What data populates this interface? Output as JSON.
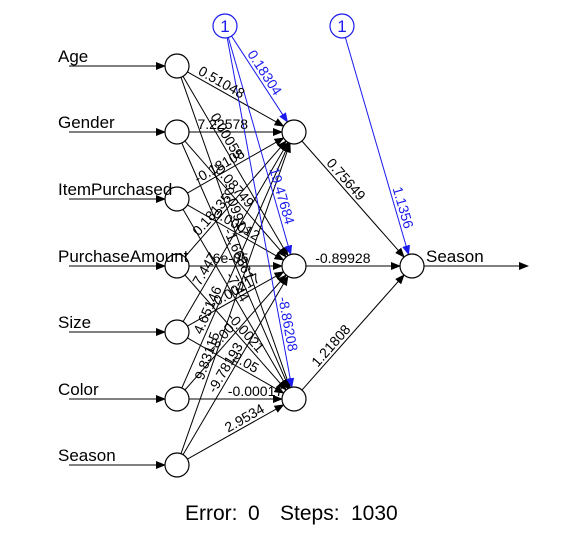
{
  "inputs": [
    "Age",
    "Gender",
    "ItemPurchased",
    "PurchaseAmount",
    "Size",
    "Color",
    "Season"
  ],
  "output": "Season",
  "bias_label": "1",
  "weights": {
    "input_hidden": [
      [
        "0.51048",
        "0.00055",
        "-0.09917"
      ],
      [
        "7.22578",
        "-0.08749",
        "-1.66661"
      ],
      [
        "-0.18108",
        "0.00012",
        "-7.44"
      ],
      [
        "0.18135",
        "6e-05",
        "-0.0021"
      ],
      [
        "7.447",
        "-0.00217",
        "-2.05"
      ],
      [
        "4.65146",
        "-3.00",
        "-0.00017"
      ],
      [
        "9.83115",
        "-9.78193",
        "2.9534"
      ]
    ],
    "bias_hidden": [
      "0.18304",
      "19.47684",
      "-8.86208"
    ],
    "hidden_output": [
      "0.75649",
      "-0.89928",
      "1.21808"
    ],
    "bias_output": "1.1356"
  },
  "footer": {
    "error_label": "Error:",
    "error_value": "0",
    "steps_label": "Steps:",
    "steps_value": "1030"
  },
  "colors": {
    "edge": "#000000",
    "bias": "#1a1aee"
  }
}
